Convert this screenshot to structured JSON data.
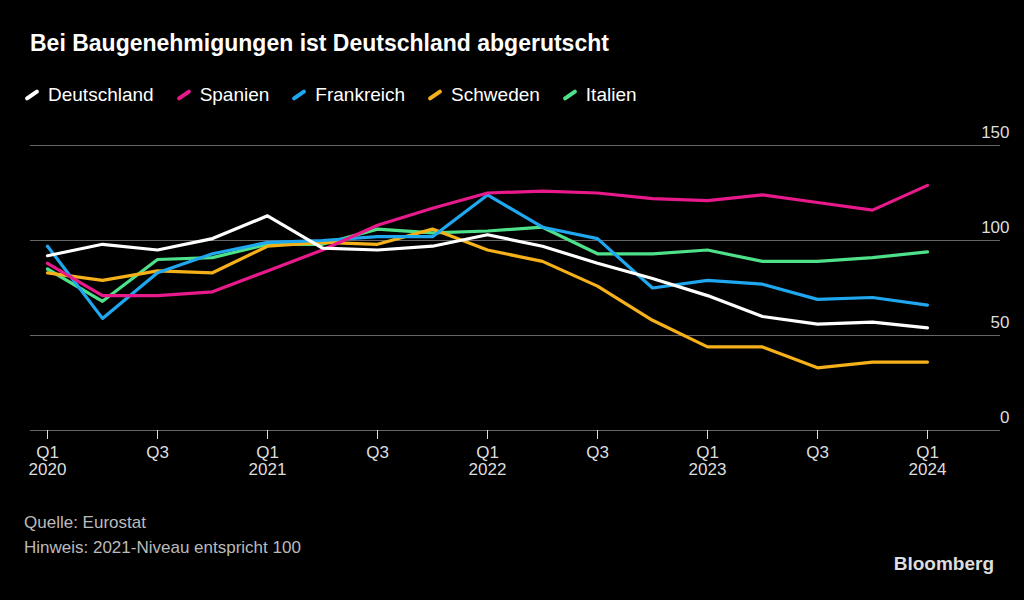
{
  "chart_data": {
    "type": "line",
    "title": "Bei Baugenehmigungen ist Deutschland abgerutscht",
    "source": "Quelle: Eurostat",
    "note": "Hinweis: 2021-Niveau entspricht 100",
    "credit": "Bloomberg",
    "categories": [
      "Q1\n2020",
      null,
      "Q3",
      null,
      "Q1\n2021",
      null,
      "Q3",
      null,
      "Q1\n2022",
      null,
      "Q3",
      null,
      "Q1\n2023",
      null,
      "Q3",
      null,
      "Q1\n2024"
    ],
    "series": [
      {
        "name": "Deutschland",
        "color": "#ffffff",
        "values": [
          92,
          98,
          95,
          101,
          113,
          96,
          95,
          97,
          103,
          97,
          88,
          80,
          71,
          60,
          56,
          57,
          54
        ]
      },
      {
        "name": "Spanien",
        "color": "#e8198b",
        "values": [
          88,
          71,
          71,
          73,
          84,
          95,
          108,
          117,
          125,
          126,
          125,
          122,
          121,
          124,
          120,
          116,
          129
        ]
      },
      {
        "name": "Frankreich",
        "color": "#1fa8f0",
        "values": [
          97,
          59,
          83,
          93,
          99,
          100,
          102,
          102,
          124,
          107,
          101,
          75,
          79,
          77,
          69,
          70,
          66
        ]
      },
      {
        "name": "Schweden",
        "color": "#f5b01a",
        "values": [
          83,
          79,
          84,
          83,
          97,
          99,
          98,
          106,
          95,
          89,
          76,
          58,
          44,
          44,
          33,
          36,
          36
        ]
      },
      {
        "name": "Italien",
        "color": "#4fe08a",
        "values": [
          85,
          68,
          90,
          91,
          98,
          98,
          106,
          104,
          105,
          107,
          93,
          93,
          95,
          89,
          89,
          91,
          94
        ]
      }
    ],
    "ylim": [
      0,
      150
    ],
    "yticks": [
      0,
      50,
      100,
      150
    ],
    "grid": true,
    "legend": "top-left"
  }
}
